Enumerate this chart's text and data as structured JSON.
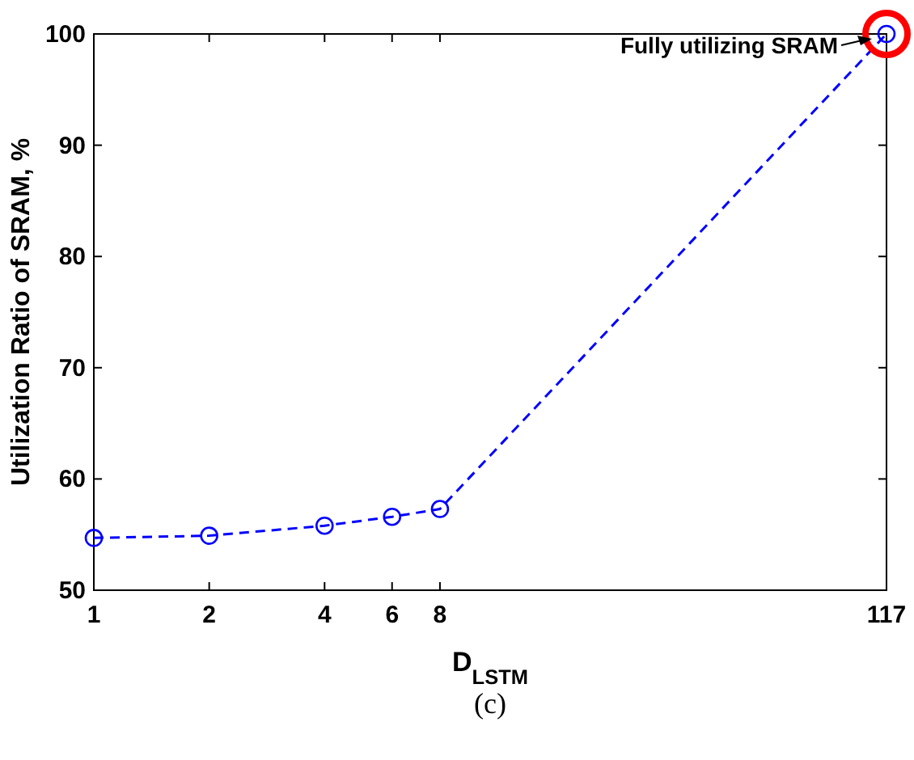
{
  "chart_data": {
    "type": "line",
    "xlabel": "D$_{LSTM}$",
    "ylabel": "Utilization Ratio of SRAM, %",
    "x": [
      1,
      2,
      4,
      6,
      8,
      117
    ],
    "series": [
      {
        "color": "#0000ff",
        "values": [
          54.7,
          54.9,
          55.8,
          56.6,
          57.3,
          100
        ]
      }
    ],
    "xlim": [
      1,
      117
    ],
    "ylim": [
      50,
      100
    ],
    "xticks": [
      1,
      2,
      4,
      6,
      8,
      117
    ],
    "yticks": [
      50,
      60,
      70,
      80,
      90,
      100
    ],
    "log": "x",
    "grid": false,
    "marker": "circle",
    "line_style": "dashed",
    "annotations": [
      {
        "text": "Fully utilizing SRAM",
        "x": 117,
        "y": 100
      },
      "(c)"
    ]
  }
}
